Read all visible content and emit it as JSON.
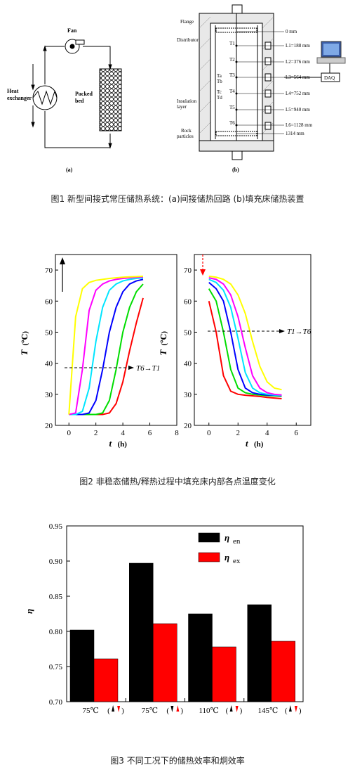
{
  "fig1": {
    "caption": "图1  新型间接式常压储热系统：(a)间接储热回路 (b)填充床储热装置",
    "a_label": "(a)",
    "b_label": "(b)",
    "fan_label": "Fan",
    "heat_exchanger_label": [
      "Heat",
      "exchanger"
    ],
    "packed_bed_label": [
      "Packed",
      "bed"
    ],
    "flange_label": "Flange",
    "distributor_label": "Distributor",
    "insulation_label": [
      "Insulation",
      "layer"
    ],
    "rock_label": [
      "Rock",
      "particles"
    ],
    "daq_label": "DAQ",
    "heights": [
      "0 mm",
      "L1=188 mm",
      "L2=376 mm",
      "L3=564 mm",
      "L4=752 mm",
      "L5=940 mm",
      "L6=1128 mm",
      "1314 mm"
    ],
    "sensors": [
      "T1",
      "T2",
      "T3",
      "T4",
      "T5",
      "T6"
    ],
    "side_sensors": [
      "Ta",
      "Tb",
      "Tc",
      "Td"
    ]
  },
  "fig2": {
    "caption": "图2 非稳态储热/释热过程中填充床内部各点温度变化",
    "left_annotation": "T6→T1",
    "right_annotation": "T1→T6",
    "colors": [
      "#ff0000",
      "#00dd00",
      "#0000ff",
      "#00e5ff",
      "#ff00ff",
      "#ffff00"
    ],
    "charts": [
      {
        "type": "line",
        "xlabel_var": "t",
        "xlabel_unit": "(h)",
        "ylabel_var": "T",
        "ylabel_unit": "(℃)",
        "xlim": [
          -1,
          8
        ],
        "ylim": [
          20,
          75
        ],
        "xticks": [
          0,
          2,
          4,
          6,
          8
        ],
        "yticks": [
          20,
          30,
          40,
          50,
          60,
          70
        ],
        "series_x": [
          0,
          0.5,
          1,
          1.5,
          2,
          2.5,
          3,
          3.5,
          4,
          4.5,
          5,
          5.5
        ],
        "series": [
          {
            "values": [
              23.5,
              23.5,
              23.5,
              23.5,
              23.5,
              23.5,
              24,
              27,
              34,
              44,
              53,
              61
            ]
          },
          {
            "values": [
              23.5,
              23.5,
              23.5,
              23.5,
              23.5,
              24,
              28,
              38,
              50,
              58,
              63,
              65.5
            ]
          },
          {
            "values": [
              23.5,
              23.5,
              23.5,
              24,
              28,
              38,
              50,
              58,
              63,
              65.5,
              66.5,
              67
            ]
          },
          {
            "values": [
              23.5,
              23.5,
              24.5,
              32,
              47,
              58,
              63.5,
              65.5,
              66.5,
              67,
              67.3,
              67.5
            ]
          },
          {
            "values": [
              23.5,
              24,
              38,
              57,
              63.5,
              65.5,
              66.5,
              67,
              67.3,
              67.5,
              67.7,
              67.8
            ]
          },
          {
            "values": [
              23.5,
              55,
              64,
              66,
              66.7,
              67,
              67.3,
              67.5,
              67.7,
              67.8,
              67.9,
              68
            ]
          }
        ]
      },
      {
        "type": "line",
        "xlabel_var": "t",
        "xlabel_unit": "(h)",
        "ylabel_var": "T",
        "ylabel_unit": "(℃)",
        "xlim": [
          -1,
          7
        ],
        "ylim": [
          20,
          75
        ],
        "xticks": [
          0,
          2,
          4,
          6
        ],
        "yticks": [
          20,
          30,
          40,
          50,
          60,
          70
        ],
        "series_x": [
          0,
          0.5,
          1,
          1.5,
          2,
          2.5,
          3,
          3.5,
          4,
          4.5,
          5
        ],
        "series": [
          {
            "values": [
              60,
              50,
              36,
              31,
              30,
              29.7,
              29.5,
              29.3,
              29,
              28.8,
              28.6
            ]
          },
          {
            "values": [
              64,
              60,
              50,
              38,
              32,
              30.5,
              30,
              29.8,
              29.6,
              29.5,
              29.4
            ]
          },
          {
            "values": [
              66,
              64,
              60,
              50,
              38,
              32,
              30.5,
              30,
              29.8,
              29.7,
              29.6
            ]
          },
          {
            "values": [
              67,
              66,
              63.5,
              58,
              48,
              37,
              32,
              30.5,
              30,
              29.8,
              29.7
            ]
          },
          {
            "values": [
              67.5,
              67,
              65.5,
              62,
              55,
              45,
              36,
              32,
              30.5,
              30,
              29.8
            ]
          },
          {
            "values": [
              68,
              67.7,
              67,
              65.5,
              62,
              56,
              47,
              39,
              34,
              32,
              31.5
            ]
          }
        ]
      }
    ]
  },
  "fig3": {
    "caption": "图3 不同工况下的储热效率和炯效率",
    "chart_data": {
      "type": "bar",
      "categories": [
        "75℃",
        "75℃",
        "110℃",
        "145℃"
      ],
      "series": [
        {
          "name": "η en",
          "color": "#000000",
          "values": [
            0.802,
            0.897,
            0.825,
            0.838
          ]
        },
        {
          "name": "η ex",
          "color": "#ff0000",
          "values": [
            0.761,
            0.811,
            0.778,
            0.786
          ]
        }
      ],
      "ylabel": "η",
      "ylim": [
        0.7,
        0.95
      ],
      "yticks": [
        "0.70",
        "0.75",
        "0.80",
        "0.85",
        "0.90",
        "0.95"
      ],
      "legend_position": "top-right"
    }
  }
}
